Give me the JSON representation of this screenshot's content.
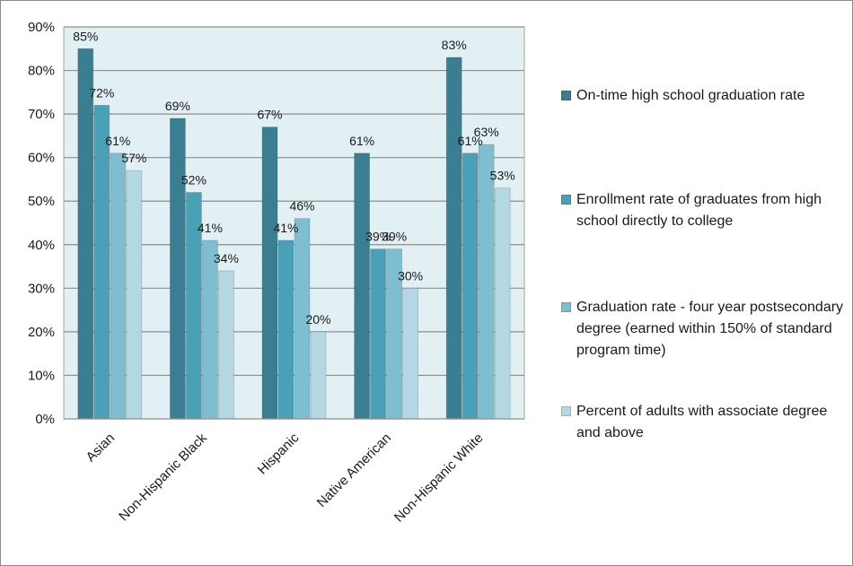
{
  "chart_data": {
    "type": "bar",
    "categories": [
      "Asian",
      "Non-Hispanic Black",
      "Hispanic",
      "Native American",
      "Non-Hispanic White"
    ],
    "series": [
      {
        "name": "On-time high school graduation rate",
        "values": [
          85,
          69,
          67,
          61,
          83
        ],
        "labels": [
          "85%",
          "69%",
          "67%",
          "61%",
          "83%"
        ],
        "color": "#3a7f91"
      },
      {
        "name": "Enrollment rate of graduates from high school directly to college",
        "values": [
          72,
          52,
          41,
          39,
          61
        ],
        "labels": [
          "72%",
          "52%",
          "41%",
          "39%",
          "61%"
        ],
        "color": "#4aa1b7"
      },
      {
        "name": "Graduation rate - four year postsecondary degree (earned within 150% of standard program time)",
        "values": [
          61,
          41,
          46,
          39,
          63
        ],
        "labels": [
          "61%",
          "41%",
          "46%",
          "39%",
          "63%"
        ],
        "color": "#7fbdd0"
      },
      {
        "name": "Percent of adults with associate degree and above",
        "values": [
          57,
          34,
          20,
          30,
          53
        ],
        "labels": [
          "57%",
          "34%",
          "20%",
          "30%",
          "53%"
        ],
        "color": "#b3d7e3"
      }
    ],
    "title": "",
    "xlabel": "",
    "ylabel": "",
    "ylim": [
      0,
      90
    ],
    "yticks": [
      "0%",
      "10%",
      "20%",
      "30%",
      "40%",
      "50%",
      "60%",
      "70%",
      "80%",
      "90%"
    ],
    "grid": true,
    "legend_position": "right",
    "plot_background": "#e2eff3",
    "gridline_color": "#8e8e8e"
  }
}
